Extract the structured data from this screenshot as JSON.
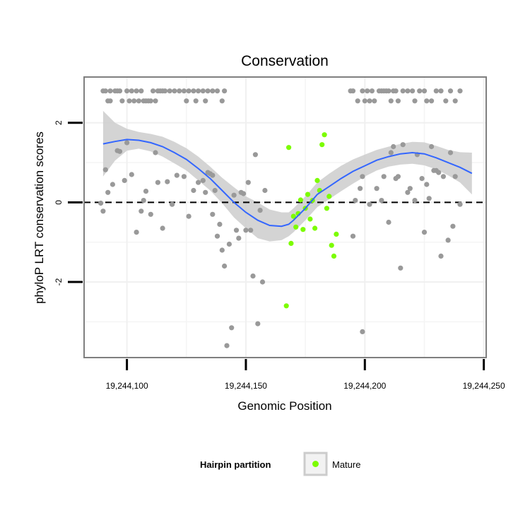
{
  "chart_data": {
    "type": "scatter",
    "title": "Conservation",
    "xlabel": "Genomic Position",
    "ylabel": "phyloP LRT conservation scores",
    "xlim": [
      19244082,
      19244251
    ],
    "ylim": [
      -3.9,
      3.15
    ],
    "x_ticks": [
      19244100,
      19244150,
      19244200,
      19244250
    ],
    "x_tick_labels": [
      "19,244,100",
      "19,244,150",
      "19,244,200",
      "19,244,250"
    ],
    "y_ticks": [
      2,
      0,
      -2
    ],
    "y_tick_labels": [
      "2",
      "0",
      "-2"
    ],
    "reference_line": {
      "y": 0,
      "style": "dashed",
      "color": "#000000"
    },
    "grid": true,
    "legend": {
      "title": "Hairpin partition",
      "position": "bottom",
      "entries": [
        {
          "label": "Mature",
          "color": "#7cfc00"
        }
      ]
    },
    "colors": {
      "other": "#999999",
      "mature": "#7cfc00",
      "smooth_line": "#3366ff",
      "ribbon": "#cccccc",
      "panel_border": "#7f7f7f"
    },
    "series": [
      {
        "name": "",
        "color": "#999999",
        "points": [
          [
            19244090,
            2.8
          ],
          [
            19244091,
            2.8
          ],
          [
            19244092,
            2.55
          ],
          [
            19244093,
            2.8
          ],
          [
            19244093,
            2.55
          ],
          [
            19244095,
            2.8
          ],
          [
            19244096,
            2.8
          ],
          [
            19244097,
            2.8
          ],
          [
            19244098,
            2.55
          ],
          [
            19244100,
            2.8
          ],
          [
            19244101,
            2.55
          ],
          [
            19244102,
            2.8
          ],
          [
            19244103,
            2.55
          ],
          [
            19244104,
            2.8
          ],
          [
            19244105,
            2.55
          ],
          [
            19244106,
            2.8
          ],
          [
            19244107,
            2.55
          ],
          [
            19244108,
            2.55
          ],
          [
            19244109,
            2.55
          ],
          [
            19244110,
            2.55
          ],
          [
            19244111,
            2.8
          ],
          [
            19244112,
            2.55
          ],
          [
            19244113,
            2.8
          ],
          [
            19244114,
            2.8
          ],
          [
            19244115,
            2.8
          ],
          [
            19244116,
            2.8
          ],
          [
            19244118,
            2.8
          ],
          [
            19244120,
            2.8
          ],
          [
            19244122,
            2.8
          ],
          [
            19244124,
            2.8
          ],
          [
            19244125,
            2.55
          ],
          [
            19244126,
            2.8
          ],
          [
            19244128,
            2.8
          ],
          [
            19244129,
            2.55
          ],
          [
            19244130,
            2.8
          ],
          [
            19244132,
            2.8
          ],
          [
            19244133,
            2.55
          ],
          [
            19244134,
            2.8
          ],
          [
            19244136,
            2.8
          ],
          [
            19244138,
            2.8
          ],
          [
            19244140,
            2.55
          ],
          [
            19244141,
            2.8
          ],
          [
            19244089,
            -0.02
          ],
          [
            19244090,
            -0.22
          ],
          [
            19244091,
            0.82
          ],
          [
            19244092,
            0.25
          ],
          [
            19244094,
            0.45
          ],
          [
            19244096,
            1.3
          ],
          [
            19244097,
            1.28
          ],
          [
            19244099,
            0.55
          ],
          [
            19244100,
            1.5
          ],
          [
            19244102,
            0.7
          ],
          [
            19244104,
            -0.75
          ],
          [
            19244106,
            -0.22
          ],
          [
            19244107,
            0.05
          ],
          [
            19244108,
            0.28
          ],
          [
            19244110,
            -0.3
          ],
          [
            19244112,
            1.25
          ],
          [
            19244113,
            0.5
          ],
          [
            19244115,
            -0.65
          ],
          [
            19244117,
            0.52
          ],
          [
            19244119,
            -0.05
          ],
          [
            19244121,
            0.68
          ],
          [
            19244124,
            0.65
          ],
          [
            19244126,
            -0.35
          ],
          [
            19244128,
            0.3
          ],
          [
            19244130,
            0.5
          ],
          [
            19244132,
            0.55
          ],
          [
            19244133,
            0.25
          ],
          [
            19244134,
            0.75
          ],
          [
            19244135,
            0.72
          ],
          [
            19244136,
            0.68
          ],
          [
            19244136,
            -0.3
          ],
          [
            19244137,
            0.3
          ],
          [
            19244138,
            -0.85
          ],
          [
            19244139,
            -0.55
          ],
          [
            19244140,
            -1.2
          ],
          [
            19244141,
            -1.6
          ],
          [
            19244142,
            -3.6
          ],
          [
            19244143,
            -1.05
          ],
          [
            19244144,
            -3.15
          ],
          [
            19244145,
            0.18
          ],
          [
            19244146,
            -0.7
          ],
          [
            19244147,
            -0.9
          ],
          [
            19244148,
            0.25
          ],
          [
            19244149,
            0.22
          ],
          [
            19244150,
            -0.7
          ],
          [
            19244151,
            0.5
          ],
          [
            19244152,
            -0.7
          ],
          [
            19244153,
            -1.85
          ],
          [
            19244154,
            1.2
          ],
          [
            19244155,
            -3.05
          ],
          [
            19244156,
            -0.2
          ],
          [
            19244157,
            -2.0
          ],
          [
            19244158,
            0.3
          ],
          [
            19244195,
            -0.85
          ],
          [
            19244196,
            0.05
          ],
          [
            19244198,
            0.35
          ],
          [
            19244199,
            -3.25
          ],
          [
            19244199,
            0.65
          ],
          [
            19244202,
            -0.05
          ],
          [
            19244205,
            0.35
          ],
          [
            19244207,
            0.05
          ],
          [
            19244208,
            0.65
          ],
          [
            19244210,
            -0.5
          ],
          [
            19244211,
            1.25
          ],
          [
            19244212,
            1.4
          ],
          [
            19244213,
            0.6
          ],
          [
            19244214,
            0.65
          ],
          [
            19244215,
            -1.65
          ],
          [
            19244216,
            1.45
          ],
          [
            19244218,
            0.25
          ],
          [
            19244219,
            0.35
          ],
          [
            19244221,
            0.05
          ],
          [
            19244222,
            1.2
          ],
          [
            19244224,
            0.6
          ],
          [
            19244225,
            -0.75
          ],
          [
            19244226,
            0.45
          ],
          [
            19244227,
            0.1
          ],
          [
            19244228,
            1.4
          ],
          [
            19244229,
            0.8
          ],
          [
            19244230,
            0.8
          ],
          [
            19244231,
            0.75
          ],
          [
            19244232,
            -1.35
          ],
          [
            19244233,
            0.65
          ],
          [
            19244235,
            -0.95
          ],
          [
            19244236,
            1.25
          ],
          [
            19244237,
            -0.6
          ],
          [
            19244238,
            0.65
          ],
          [
            19244240,
            -0.05
          ],
          [
            19244194,
            2.8
          ],
          [
            19244195,
            2.8
          ],
          [
            19244197,
            2.55
          ],
          [
            19244199,
            2.8
          ],
          [
            19244200,
            2.55
          ],
          [
            19244201,
            2.8
          ],
          [
            19244202,
            2.55
          ],
          [
            19244203,
            2.8
          ],
          [
            19244204,
            2.55
          ],
          [
            19244206,
            2.8
          ],
          [
            19244207,
            2.8
          ],
          [
            19244208,
            2.8
          ],
          [
            19244209,
            2.8
          ],
          [
            19244210,
            2.8
          ],
          [
            19244211,
            2.55
          ],
          [
            19244212,
            2.8
          ],
          [
            19244213,
            2.8
          ],
          [
            19244214,
            2.55
          ],
          [
            19244216,
            2.8
          ],
          [
            19244218,
            2.8
          ],
          [
            19244220,
            2.8
          ],
          [
            19244221,
            2.55
          ],
          [
            19244223,
            2.8
          ],
          [
            19244225,
            2.8
          ],
          [
            19244226,
            2.55
          ],
          [
            19244228,
            2.55
          ],
          [
            19244230,
            2.8
          ],
          [
            19244232,
            2.8
          ],
          [
            19244234,
            2.55
          ],
          [
            19244236,
            2.8
          ],
          [
            19244238,
            2.55
          ],
          [
            19244240,
            2.8
          ]
        ]
      },
      {
        "name": "Mature",
        "color": "#7cfc00",
        "points": [
          [
            19244168,
            1.38
          ],
          [
            19244169,
            -1.03
          ],
          [
            19244170,
            -0.35
          ],
          [
            19244171,
            -0.62
          ],
          [
            19244172,
            -0.28
          ],
          [
            19244173,
            0.06
          ],
          [
            19244174,
            -0.68
          ],
          [
            19244175,
            -0.15
          ],
          [
            19244176,
            0.2
          ],
          [
            19244177,
            -0.42
          ],
          [
            19244178,
            0.05
          ],
          [
            19244179,
            -0.65
          ],
          [
            19244180,
            0.55
          ],
          [
            19244181,
            0.3
          ],
          [
            19244182,
            1.45
          ],
          [
            19244183,
            1.7
          ],
          [
            19244184,
            -0.15
          ],
          [
            19244185,
            0.15
          ],
          [
            19244186,
            -1.08
          ],
          [
            19244187,
            -1.35
          ],
          [
            19244188,
            -0.8
          ],
          [
            19244167,
            -2.6
          ]
        ]
      }
    ],
    "smooth": {
      "x": [
        19244090,
        19244095,
        19244100,
        19244105,
        19244110,
        19244115,
        19244120,
        19244125,
        19244130,
        19244135,
        19244140,
        19244145,
        19244150,
        19244155,
        19244160,
        19244165,
        19244168,
        19244170,
        19244175,
        19244180,
        19244185,
        19244190,
        19244195,
        19244200,
        19244205,
        19244210,
        19244215,
        19244220,
        19244225,
        19244230,
        19244235,
        19244240,
        19244245
      ],
      "y": [
        1.47,
        1.53,
        1.58,
        1.56,
        1.5,
        1.4,
        1.25,
        1.08,
        0.85,
        0.6,
        0.3,
        0.0,
        -0.25,
        -0.45,
        -0.58,
        -0.6,
        -0.55,
        -0.45,
        -0.15,
        0.2,
        0.4,
        0.6,
        0.78,
        0.92,
        1.06,
        1.15,
        1.22,
        1.25,
        1.22,
        1.12,
        1.0,
        0.88,
        0.73
      ],
      "lower": [
        0.65,
        1.05,
        1.3,
        1.35,
        1.28,
        1.15,
        0.98,
        0.8,
        0.55,
        0.3,
        -0.02,
        -0.38,
        -0.65,
        -0.9,
        -0.98,
        -0.95,
        -0.85,
        -0.75,
        -0.45,
        -0.12,
        0.08,
        0.28,
        0.47,
        0.65,
        0.8,
        0.9,
        0.95,
        0.97,
        0.93,
        0.83,
        0.68,
        0.5,
        0.2
      ],
      "upper": [
        2.3,
        2.0,
        1.85,
        1.77,
        1.72,
        1.65,
        1.52,
        1.36,
        1.15,
        0.9,
        0.62,
        0.38,
        0.15,
        0.0,
        -0.18,
        -0.25,
        -0.25,
        -0.15,
        0.15,
        0.5,
        0.72,
        0.92,
        1.08,
        1.2,
        1.32,
        1.4,
        1.47,
        1.52,
        1.51,
        1.42,
        1.32,
        1.26,
        1.25
      ]
    }
  }
}
